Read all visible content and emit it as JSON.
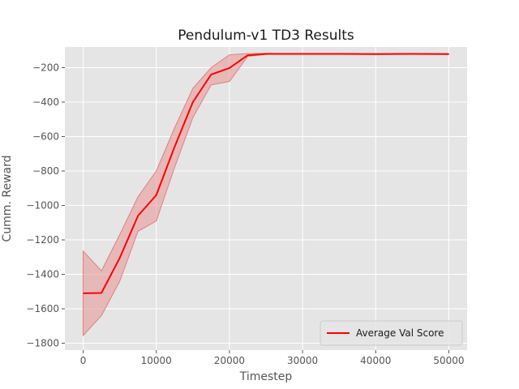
{
  "chart_data": {
    "type": "line",
    "title": "Pendulum-v1 TD3 Results",
    "xlabel": "Timestep",
    "ylabel": "Cumm. Reward",
    "xlim": [
      -2500,
      52500
    ],
    "ylim": [
      -1840,
      -80
    ],
    "xticks": [
      0,
      10000,
      20000,
      30000,
      40000,
      50000
    ],
    "yticks": [
      -1800,
      -1600,
      -1400,
      -1200,
      -1000,
      -800,
      -600,
      -400,
      -200
    ],
    "grid": true,
    "legend_position": "lower-right",
    "colors": {
      "line": "#ff0000",
      "band": "#e89a9a",
      "band_edge": "#e07f7f",
      "axes_bg": "#e5e5e5",
      "grid": "#ffffff"
    },
    "series": [
      {
        "name": "Average Val Score",
        "x": [
          0,
          2500,
          5000,
          7500,
          10000,
          12500,
          15000,
          17500,
          20000,
          22500,
          25000,
          30000,
          35000,
          40000,
          45000,
          50000
        ],
        "y": [
          -1510,
          -1508,
          -1305,
          -1060,
          -940,
          -660,
          -400,
          -240,
          -202,
          -128,
          -120,
          -120,
          -120,
          -121,
          -120,
          -121
        ],
        "lower": [
          -1755,
          -1640,
          -1440,
          -1150,
          -1090,
          -780,
          -490,
          -300,
          -280,
          -135,
          -123,
          -122,
          -122,
          -123,
          -122,
          -123
        ],
        "upper": [
          -1265,
          -1380,
          -1170,
          -950,
          -800,
          -550,
          -320,
          -200,
          -125,
          -118,
          -117,
          -118,
          -118,
          -119,
          -118,
          -119
        ]
      }
    ]
  }
}
